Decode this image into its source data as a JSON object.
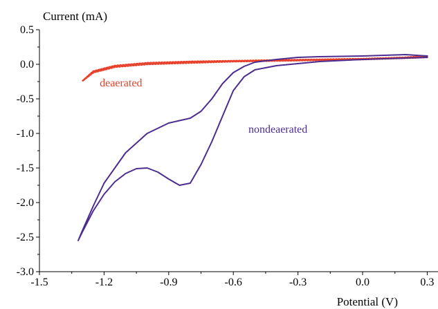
{
  "chart_data": {
    "type": "line",
    "title": "",
    "xlabel": "Potential (V)",
    "ylabel": "Current (mA)",
    "xlim": [
      -1.5,
      0.35
    ],
    "ylim": [
      -3.0,
      0.5
    ],
    "x_ticks": [
      -1.5,
      -1.2,
      -0.9,
      -0.6,
      -0.3,
      0.0,
      0.3
    ],
    "x_tick_labels": [
      "-1.5",
      "-1.2",
      "-0.9",
      "-0.6",
      "-0.3",
      "0.0",
      "0.3"
    ],
    "y_ticks": [
      0.5,
      0.0,
      -0.5,
      -1.0,
      -1.5,
      -2.0,
      -2.5,
      -3.0
    ],
    "y_tick_labels": [
      "0.5",
      "0.0",
      "-0.5",
      "-1.0",
      "-1.5",
      "-2.0",
      "-2.5",
      "-3.0"
    ],
    "grid": false,
    "legend": "none",
    "annotations": [
      {
        "text": "deaerated",
        "color": "#e8402a",
        "x": -1.22,
        "y": -0.32
      },
      {
        "text": "nondeaerated",
        "color": "#4b2c8f",
        "x": -0.53,
        "y": -0.99
      }
    ],
    "series": [
      {
        "name": "deaerated",
        "color": "#e8402a",
        "style": "dotted",
        "x": [
          0.3,
          0.2,
          0.1,
          0.0,
          -0.2,
          -0.4,
          -0.6,
          -0.8,
          -1.0,
          -1.15,
          -1.25,
          -1.3,
          -1.25,
          -1.15,
          -1.0,
          -0.8,
          -0.6,
          -0.4,
          -0.2,
          0.0,
          0.1,
          0.2,
          0.3
        ],
        "y": [
          0.1,
          0.09,
          0.08,
          0.07,
          0.06,
          0.05,
          0.04,
          0.02,
          0.0,
          -0.04,
          -0.12,
          -0.24,
          -0.1,
          -0.02,
          0.02,
          0.04,
          0.05,
          0.06,
          0.07,
          0.08,
          0.09,
          0.1,
          0.12
        ]
      },
      {
        "name": "nondeaerated",
        "color": "#4b2c8f",
        "style": "solid",
        "x": [
          0.3,
          0.2,
          0.1,
          0.0,
          -0.2,
          -0.4,
          -0.5,
          -0.55,
          -0.6,
          -0.65,
          -0.7,
          -0.75,
          -0.8,
          -0.85,
          -0.9,
          -0.95,
          -1.0,
          -1.05,
          -1.1,
          -1.15,
          -1.2,
          -1.25,
          -1.3,
          -1.32,
          -1.3,
          -1.25,
          -1.2,
          -1.1,
          -1.0,
          -0.9,
          -0.8,
          -0.75,
          -0.7,
          -0.65,
          -0.6,
          -0.55,
          -0.5,
          -0.4,
          -0.3,
          -0.2,
          0.0,
          0.1,
          0.2,
          0.3
        ],
        "y": [
          0.1,
          0.09,
          0.08,
          0.07,
          0.04,
          -0.02,
          -0.08,
          -0.18,
          -0.38,
          -0.75,
          -1.12,
          -1.45,
          -1.72,
          -1.75,
          -1.66,
          -1.56,
          -1.5,
          -1.51,
          -1.58,
          -1.7,
          -1.88,
          -2.12,
          -2.42,
          -2.55,
          -2.4,
          -2.05,
          -1.72,
          -1.28,
          -1.0,
          -0.85,
          -0.78,
          -0.68,
          -0.5,
          -0.28,
          -0.12,
          -0.03,
          0.03,
          0.07,
          0.1,
          0.11,
          0.12,
          0.13,
          0.14,
          0.12
        ]
      }
    ]
  }
}
